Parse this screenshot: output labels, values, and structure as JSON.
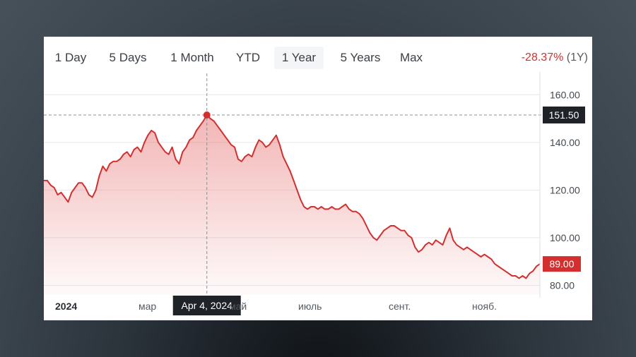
{
  "range_tabs": [
    {
      "label": "1 Day",
      "active": false
    },
    {
      "label": "5 Days",
      "active": false
    },
    {
      "label": "1 Month",
      "active": false
    },
    {
      "label": "YTD",
      "active": false
    },
    {
      "label": "1 Year",
      "active": true
    },
    {
      "label": "5 Years",
      "active": false
    },
    {
      "label": "Max",
      "active": false
    }
  ],
  "change": {
    "percent": "-28.37%",
    "period": "(1Y)"
  },
  "colors": {
    "line": "#d32f2f",
    "badge_dark": "#1f2226",
    "badge_red": "#d32f2f"
  },
  "chart_data": {
    "type": "area",
    "y_ticks": [
      "160.00",
      "140.00",
      "120.00",
      "100.00",
      "80.00"
    ],
    "ylim": [
      76,
      166
    ],
    "x_tick_labels": [
      "2024",
      "мар",
      "май",
      "июль",
      "сент.",
      "нояб."
    ],
    "series": [
      {
        "y": [
          124,
          124,
          122,
          121,
          118,
          119,
          117,
          115,
          119,
          121,
          123,
          123,
          121,
          118,
          117,
          120,
          126,
          130,
          128,
          131,
          132,
          132,
          133,
          135,
          136,
          134,
          137,
          138,
          136,
          140,
          143,
          145,
          144,
          140,
          138,
          136,
          135,
          138,
          133,
          131,
          136,
          138,
          141,
          142,
          145,
          147,
          149,
          151.5,
          150,
          149,
          147,
          145,
          143,
          141,
          139,
          138,
          133,
          132,
          134,
          135,
          134,
          138,
          141,
          140,
          138,
          139,
          141,
          143,
          139,
          134,
          131,
          128,
          124,
          120,
          116,
          113,
          112,
          113,
          113,
          112,
          113,
          112,
          112,
          113,
          112,
          112,
          113,
          114,
          112,
          111,
          111,
          110,
          108,
          105,
          102,
          100,
          99,
          101,
          103,
          104,
          105,
          105,
          104,
          103,
          103,
          101,
          100,
          96,
          94,
          95,
          97,
          98,
          97,
          99,
          98,
          97,
          101,
          104,
          99,
          97,
          96,
          95,
          96,
          95,
          94,
          93,
          92,
          93,
          92,
          91,
          89,
          88,
          87,
          86,
          85,
          84,
          84,
          83,
          84,
          83,
          85,
          86,
          88,
          89
        ]
      }
    ],
    "highlight": {
      "label": "Apr 4, 2024",
      "value": "151.50"
    },
    "last": {
      "value": "89.00"
    }
  }
}
